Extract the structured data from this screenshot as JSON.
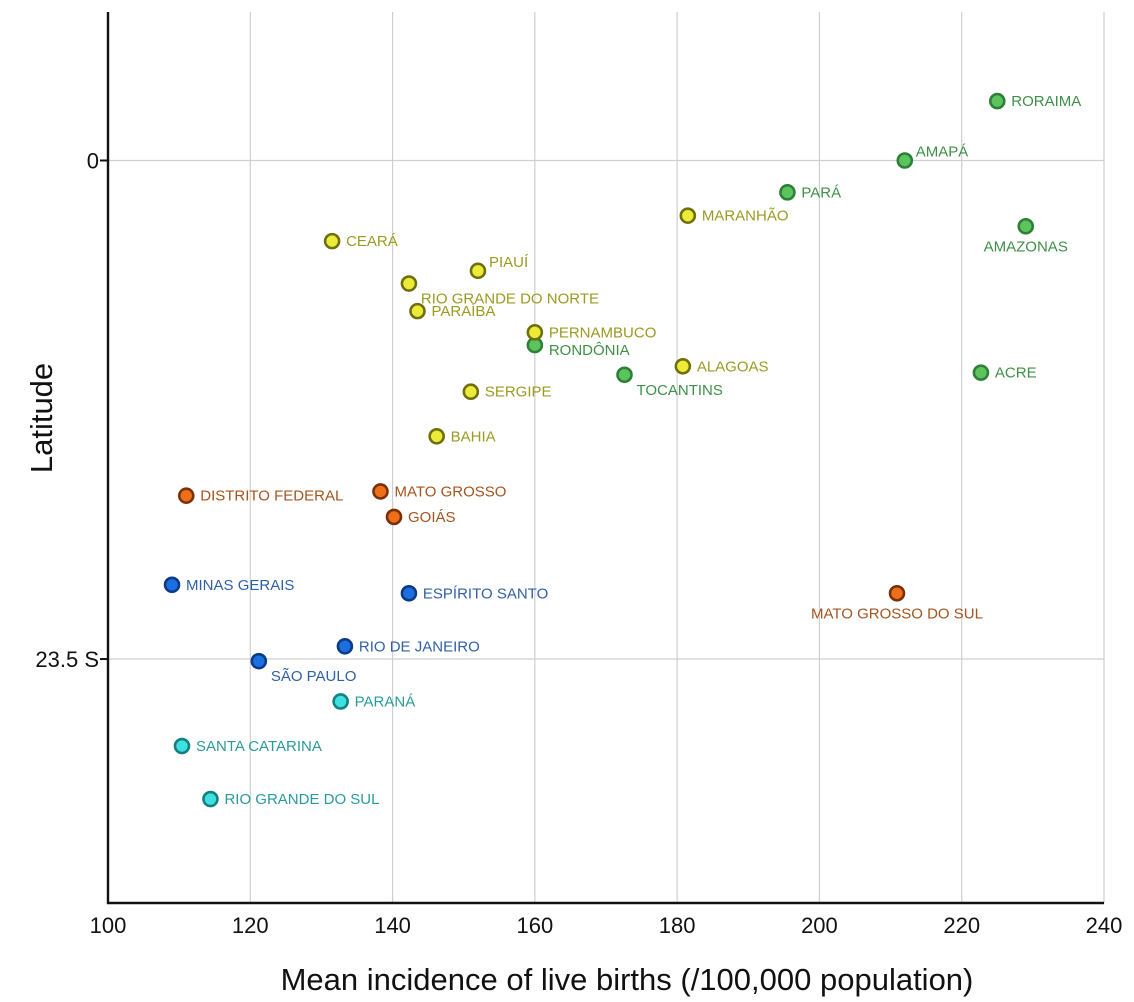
{
  "chart_data": {
    "type": "scatter",
    "xlabel": "Mean incidence of live births (/100,000 population)",
    "ylabel": "Latitude",
    "xlim": [
      100,
      240
    ],
    "ylim": [
      7,
      -35
    ],
    "x_ticks": [
      100,
      120,
      140,
      160,
      180,
      200,
      220,
      240
    ],
    "y_ticks": [
      {
        "value": 0,
        "label": "0"
      },
      {
        "value": -23.5,
        "label": "23.5 S"
      }
    ],
    "grid": true,
    "groups": [
      {
        "color": "#5cc45c",
        "stroke": "#2f7f38",
        "label_color": "#3f8f48",
        "points": [
          {
            "name": "RORAIMA",
            "x": 225.0,
            "y": 2.8,
            "label_pos": "right"
          },
          {
            "name": "AMAPÁ",
            "x": 212.0,
            "y": 0.0,
            "label_pos": "upper-right"
          },
          {
            "name": "PARÁ",
            "x": 195.5,
            "y": -1.5,
            "label_pos": "right"
          },
          {
            "name": "AMAZONAS",
            "x": 229.0,
            "y": -3.1,
            "label_pos": "below"
          },
          {
            "name": "RONDÔNIA",
            "x": 160.0,
            "y": -8.7,
            "label_pos": "right-low"
          },
          {
            "name": "TOCANTINS",
            "x": 172.6,
            "y": -10.1,
            "label_pos": "right-below"
          },
          {
            "name": "ACRE",
            "x": 222.7,
            "y": -10.0,
            "label_pos": "right"
          }
        ]
      },
      {
        "color": "#ecec38",
        "stroke": "#6f6f10",
        "label_color": "#9a9a22",
        "points": [
          {
            "name": "MARANHÃO",
            "x": 181.5,
            "y": -2.6,
            "label_pos": "right"
          },
          {
            "name": "CEARÁ",
            "x": 131.5,
            "y": -3.8,
            "label_pos": "right"
          },
          {
            "name": "PIAUÍ",
            "x": 152.0,
            "y": -5.2,
            "label_pos": "upper-right"
          },
          {
            "name": "RIO GRANDE DO NORTE",
            "x": 142.3,
            "y": -5.8,
            "label_pos": "right-below"
          },
          {
            "name": "PARAÍBA",
            "x": 143.5,
            "y": -7.1,
            "label_pos": "right"
          },
          {
            "name": "PERNAMBUCO",
            "x": 160.0,
            "y": -8.1,
            "label_pos": "right"
          },
          {
            "name": "ALAGOAS",
            "x": 180.8,
            "y": -9.7,
            "label_pos": "right"
          },
          {
            "name": "SERGIPE",
            "x": 151.0,
            "y": -10.9,
            "label_pos": "right"
          },
          {
            "name": "BAHIA",
            "x": 146.2,
            "y": -13.0,
            "label_pos": "right"
          }
        ]
      },
      {
        "color": "#ee6f1a",
        "stroke": "#7a3008",
        "label_color": "#a4541e",
        "points": [
          {
            "name": "DISTRITO FEDERAL",
            "x": 111.0,
            "y": -15.8,
            "label_pos": "right"
          },
          {
            "name": "MATO GROSSO",
            "x": 138.3,
            "y": -15.6,
            "label_pos": "right"
          },
          {
            "name": "GOIÁS",
            "x": 140.2,
            "y": -16.8,
            "label_pos": "right"
          },
          {
            "name": "MATO GROSSO DO SUL",
            "x": 210.9,
            "y": -20.4,
            "label_pos": "below"
          }
        ]
      },
      {
        "color": "#1c6fe0",
        "stroke": "#0d3a86",
        "label_color": "#2f5fa6",
        "points": [
          {
            "name": "MINAS GERAIS",
            "x": 109.0,
            "y": -20.0,
            "label_pos": "right"
          },
          {
            "name": "ESPÍRITO SANTO",
            "x": 142.3,
            "y": -20.4,
            "label_pos": "right"
          },
          {
            "name": "RIO DE JANEIRO",
            "x": 133.3,
            "y": -22.9,
            "label_pos": "right"
          },
          {
            "name": "SÃO PAULO",
            "x": 121.2,
            "y": -23.6,
            "label_pos": "right-below"
          }
        ]
      },
      {
        "color": "#3ee0e0",
        "stroke": "#157f82",
        "label_color": "#2a9a9a",
        "points": [
          {
            "name": "PARANÁ",
            "x": 132.7,
            "y": -25.5,
            "label_pos": "right"
          },
          {
            "name": "SANTA CATARINA",
            "x": 110.4,
            "y": -27.6,
            "label_pos": "right"
          },
          {
            "name": "RIO GRANDE DO SUL",
            "x": 114.4,
            "y": -30.1,
            "label_pos": "right"
          }
        ]
      }
    ]
  }
}
